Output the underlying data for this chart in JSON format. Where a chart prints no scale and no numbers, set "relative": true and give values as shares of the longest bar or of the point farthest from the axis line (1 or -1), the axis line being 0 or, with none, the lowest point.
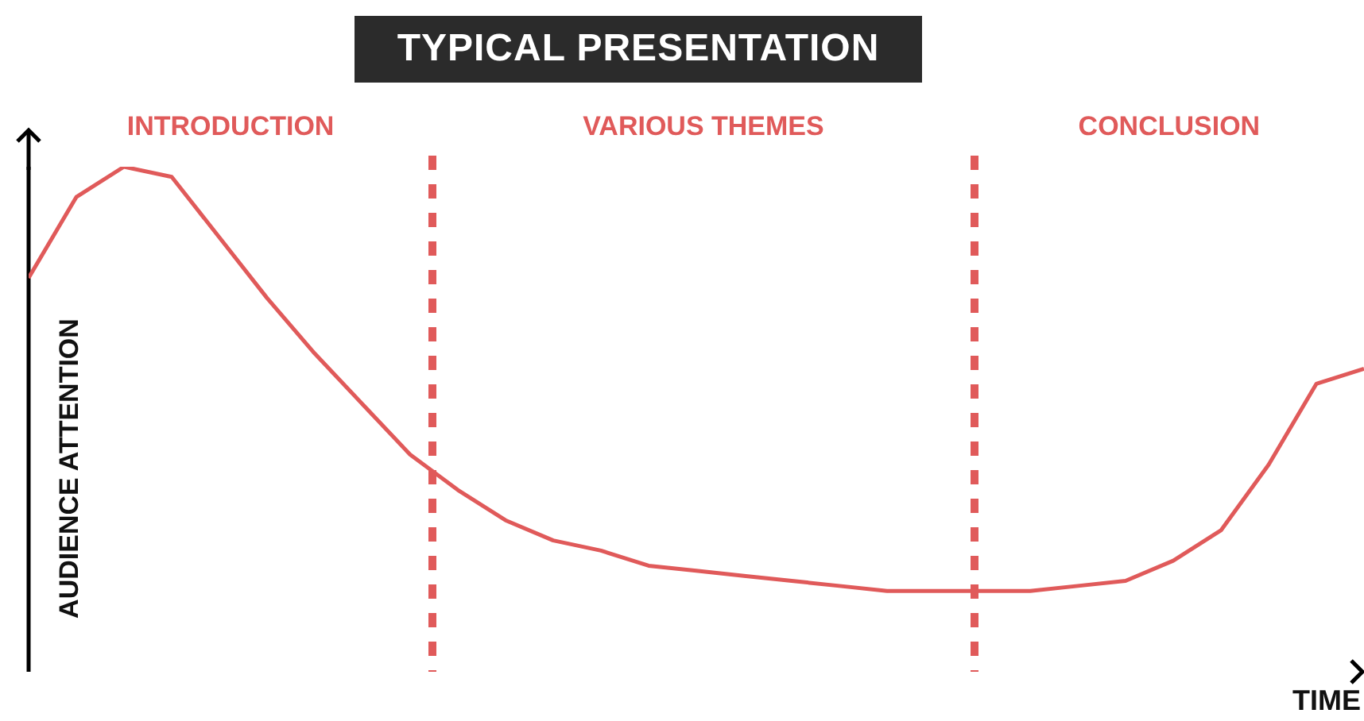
{
  "chart_data": {
    "type": "line",
    "title": "TYPICAL PRESENTATION",
    "xlabel": "TIME",
    "ylabel": "AUDIENCE ATTENTION",
    "relative": true,
    "categories": [
      null,
      null,
      null,
      null,
      null,
      null,
      null,
      null,
      null,
      null,
      null,
      null,
      null,
      null,
      null,
      null,
      null,
      null,
      null,
      null,
      null,
      null,
      null,
      null,
      null,
      null,
      null,
      null,
      null
    ],
    "grid": false,
    "legend": false,
    "marker": "none",
    "line_style": "solid",
    "series": [
      {
        "color": "#e05a5a",
        "values": [
          0.78,
          0.94,
          1.0,
          0.98,
          0.86,
          0.74,
          0.63,
          0.53,
          0.43,
          0.36,
          0.3,
          0.26,
          0.24,
          0.21,
          0.2,
          0.19,
          0.18,
          0.17,
          0.16,
          0.16,
          0.16,
          0.16,
          0.17,
          0.18,
          0.22,
          0.28,
          0.41,
          0.57,
          0.6
        ]
      }
    ],
    "annotations": [
      "INTRODUCTION",
      "VARIOUS THEMES",
      "CONCLUSION"
    ]
  }
}
